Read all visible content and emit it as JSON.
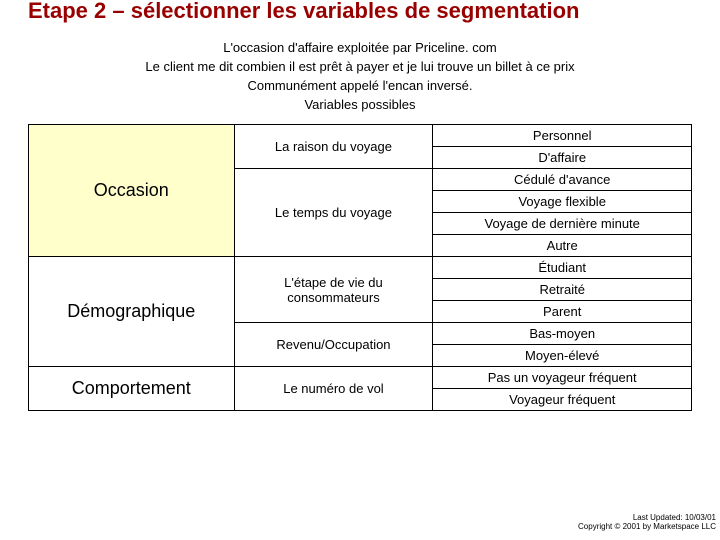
{
  "title": "Etape 2 – sélectionner les variables de segmentation",
  "intro": [
    "L'occasion d'affaire exploitée par Priceline. com",
    "Le client me dit combien il est prêt à payer et je lui trouve un billet à ce prix",
    "Communément appelé l'encan inversé.",
    "Variables possibles"
  ],
  "categories": {
    "occasion": "Occasion",
    "demographique": "Démographique",
    "comportement": "Comportement"
  },
  "mid": {
    "raison": "La raison du voyage",
    "temps": "Le temps du voyage",
    "etape": "L'étape de vie du consommateurs",
    "revenu": "Revenu/Occupation",
    "numero": "Le numéro de vol"
  },
  "right": {
    "personnel": "Personnel",
    "affaire": "D'affaire",
    "cedule": "Cédulé d'avance",
    "flexible": "Voyage flexible",
    "derniere": "Voyage de dernière minute",
    "autre": "Autre",
    "etudiant": "Étudiant",
    "retraite": "Retraité",
    "parent": "Parent",
    "bas": "Bas-moyen",
    "moyen": "Moyen-élevé",
    "pas": "Pas un voyageur fréquent",
    "freq": "Voyageur fréquent"
  },
  "footer": {
    "updated": "Last Updated: 10/03/01",
    "copyright": "Copyright © 2001 by Marketspace LLC"
  },
  "colors": {
    "title": "#990000",
    "highlight_bg": "#ffffcc",
    "border": "#000000",
    "background": "#ffffff"
  }
}
